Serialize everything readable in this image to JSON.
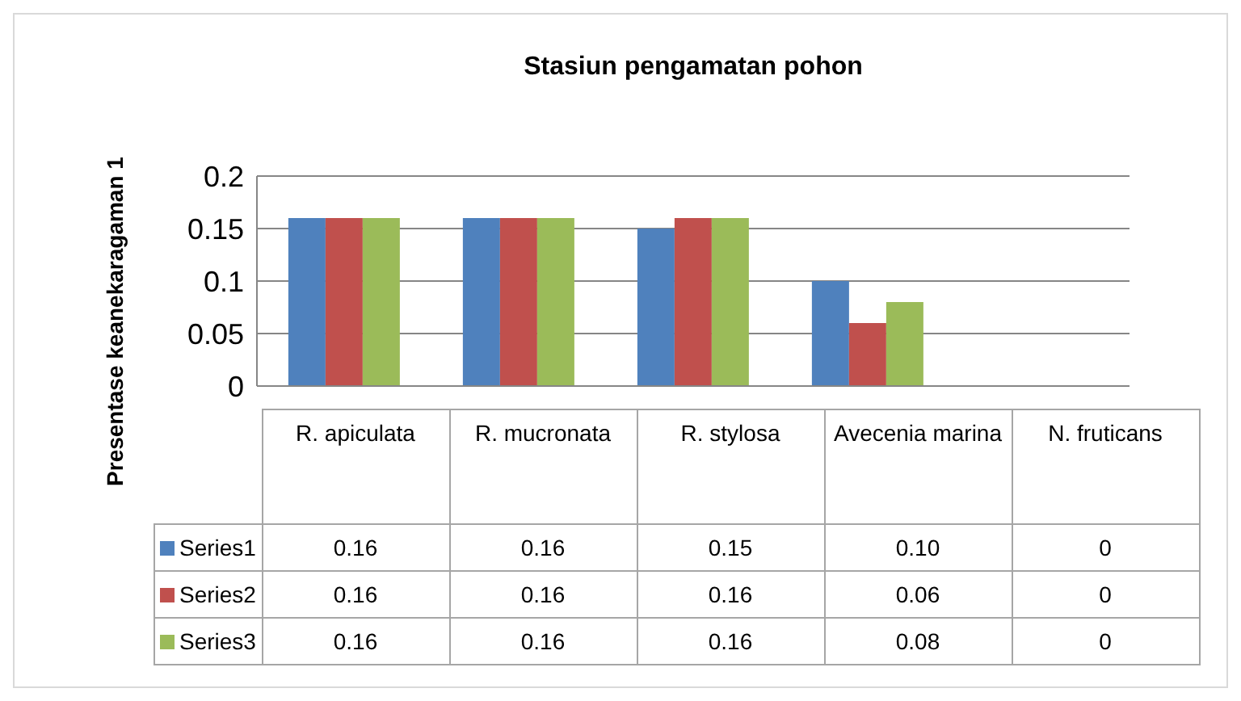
{
  "chart_data": {
    "type": "bar",
    "title": "Stasiun pengamatan pohon",
    "ylabel": "Presentase keanekaragaman 1",
    "categories": [
      "R. apiculata",
      "R. mucronata",
      "R. stylosa",
      "Avecenia marina",
      "N. fruticans"
    ],
    "series": [
      {
        "name": "Series1",
        "color": "#4f81bd",
        "values": [
          0.16,
          0.16,
          0.15,
          0.1,
          0
        ],
        "value_labels": [
          "0.16",
          "0.16",
          "0.15",
          "0.10",
          "0"
        ]
      },
      {
        "name": "Series2",
        "color": "#c0504d",
        "values": [
          0.16,
          0.16,
          0.16,
          0.06,
          0
        ],
        "value_labels": [
          "0.16",
          "0.16",
          "0.16",
          "0.06",
          "0"
        ]
      },
      {
        "name": "Series3",
        "color": "#9bbb59",
        "values": [
          0.16,
          0.16,
          0.16,
          0.08,
          0
        ],
        "value_labels": [
          "0.16",
          "0.16",
          "0.16",
          "0.08",
          "0"
        ]
      }
    ],
    "ylim": [
      0,
      0.2
    ],
    "yticks": [
      0,
      0.05,
      0.1,
      0.15,
      0.2
    ],
    "grid": "y",
    "legend": "bottom",
    "data_labels": true
  }
}
